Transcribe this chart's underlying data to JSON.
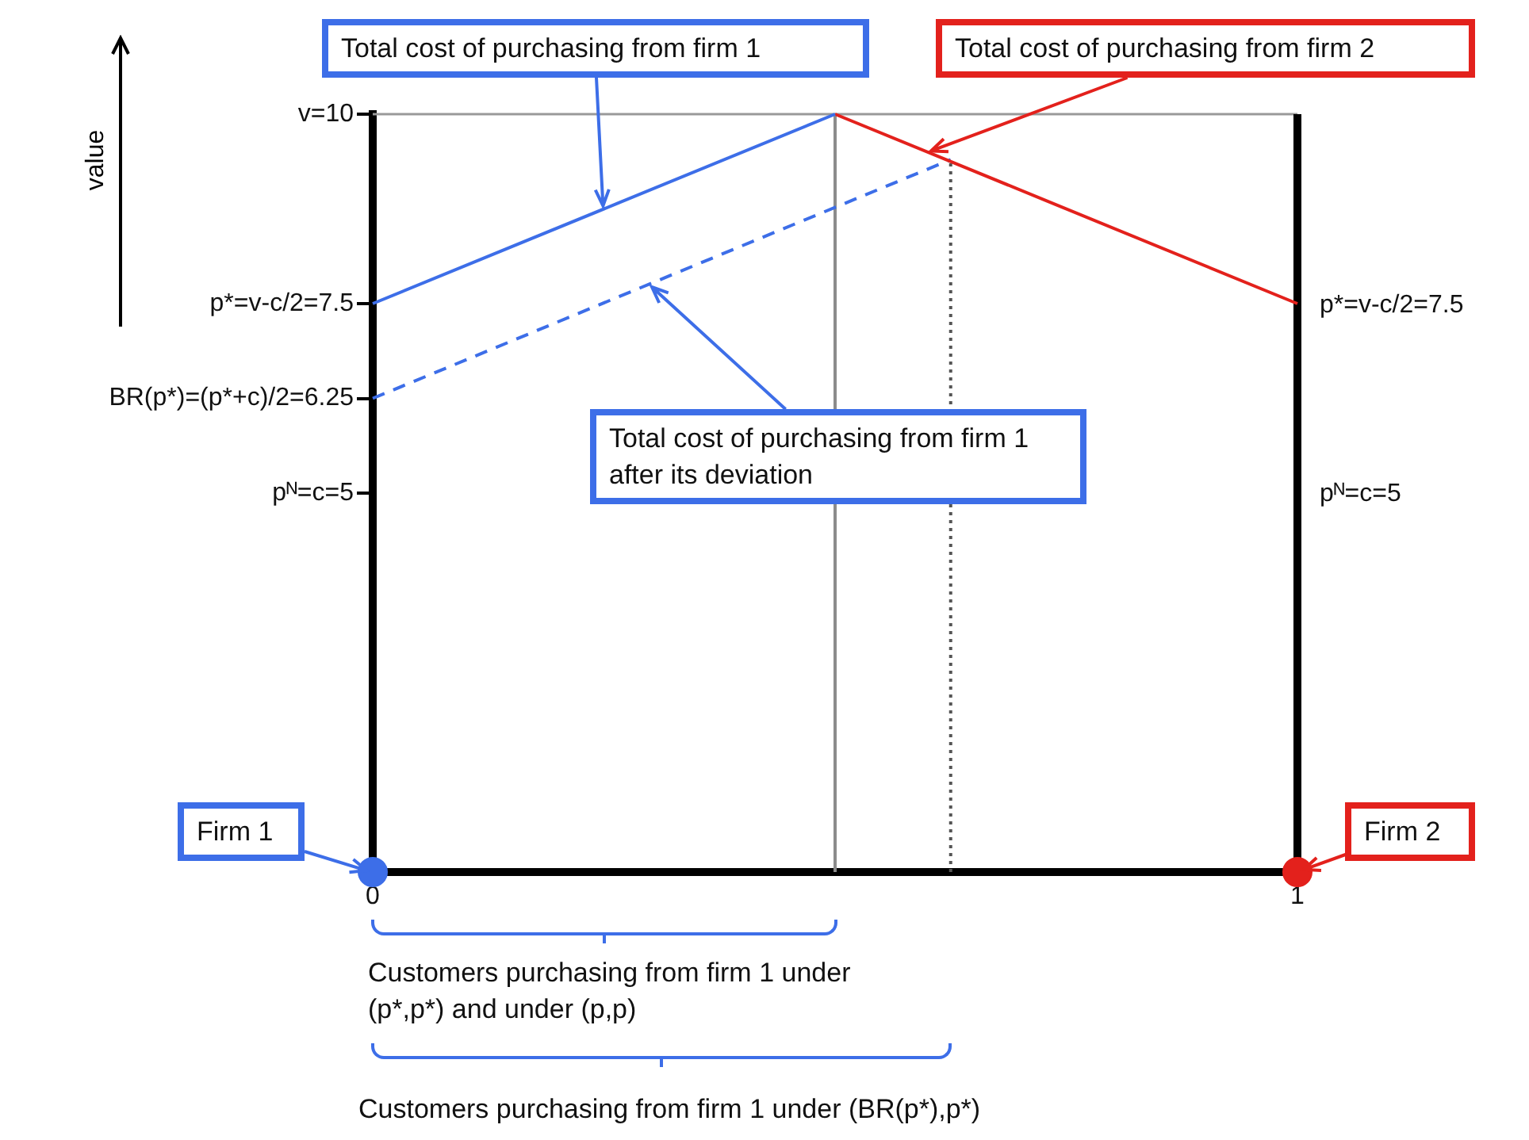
{
  "chart_data": {
    "type": "line",
    "ylabel": "value",
    "xlim": [
      0,
      1
    ],
    "xticks": [
      0,
      1
    ],
    "ylim": [
      0,
      10
    ],
    "yticks": [
      {
        "value": 10,
        "label": "v=10"
      },
      {
        "value": 7.5,
        "label": "p*=v-c/2=7.5"
      },
      {
        "value": 6.25,
        "label": "BR(p*)=(p*+c)/2=6.25"
      },
      {
        "value": 5,
        "label": "pᴺ=c=5"
      }
    ],
    "grid": false,
    "legend": false,
    "marker": "none",
    "series": [
      {
        "color": "#3d6ee8",
        "x": [
          0,
          0.5
        ],
        "values": [
          7.5,
          10
        ]
      },
      {
        "color": "#e3211c",
        "x": [
          0.5,
          1
        ],
        "values": [
          10,
          7.5
        ]
      },
      {
        "color": "#3d6ee8",
        "line_style": "dashed",
        "x": [
          0,
          0.625
        ],
        "values": [
          6.25,
          9.4
        ]
      },
      {
        "color": "#8c8c8c",
        "x": [
          0.5,
          0.5
        ],
        "values": [
          0,
          10
        ]
      },
      {
        "color": "#555555",
        "line_style": "dotted",
        "x": [
          0.625,
          0.625
        ],
        "values": [
          0,
          9.4
        ]
      },
      {
        "type": "scatter",
        "marker": "circle",
        "colors": [
          "#3d6ee8",
          "#e3211c"
        ],
        "x": [
          0,
          1
        ],
        "values": [
          0,
          0
        ]
      }
    ],
    "annotations": [
      {
        "text": "Total cost of purchasing from firm 1",
        "x": 0.25,
        "y": 8.75
      },
      {
        "text": "Total cost of purchasing from firm 2",
        "x": 0.6,
        "y": 9.5
      },
      {
        "text": "Total cost of purchasing from firm 1 after its deviation",
        "x": 0.3,
        "y": 7.75
      },
      {
        "text": "Firm 1",
        "x": 0,
        "y": 0
      },
      {
        "text": "Firm 2",
        "x": 1,
        "y": 0
      },
      {
        "text": "p*=v-c/2=7.5",
        "x": 1,
        "y": 7.5
      },
      "pᴺ=c=5",
      "Customers purchasing from firm 1 under (p*,p*) and under (p,p)",
      "Customers purchasing from firm 1 under (BR(p*),p*)"
    ]
  }
}
